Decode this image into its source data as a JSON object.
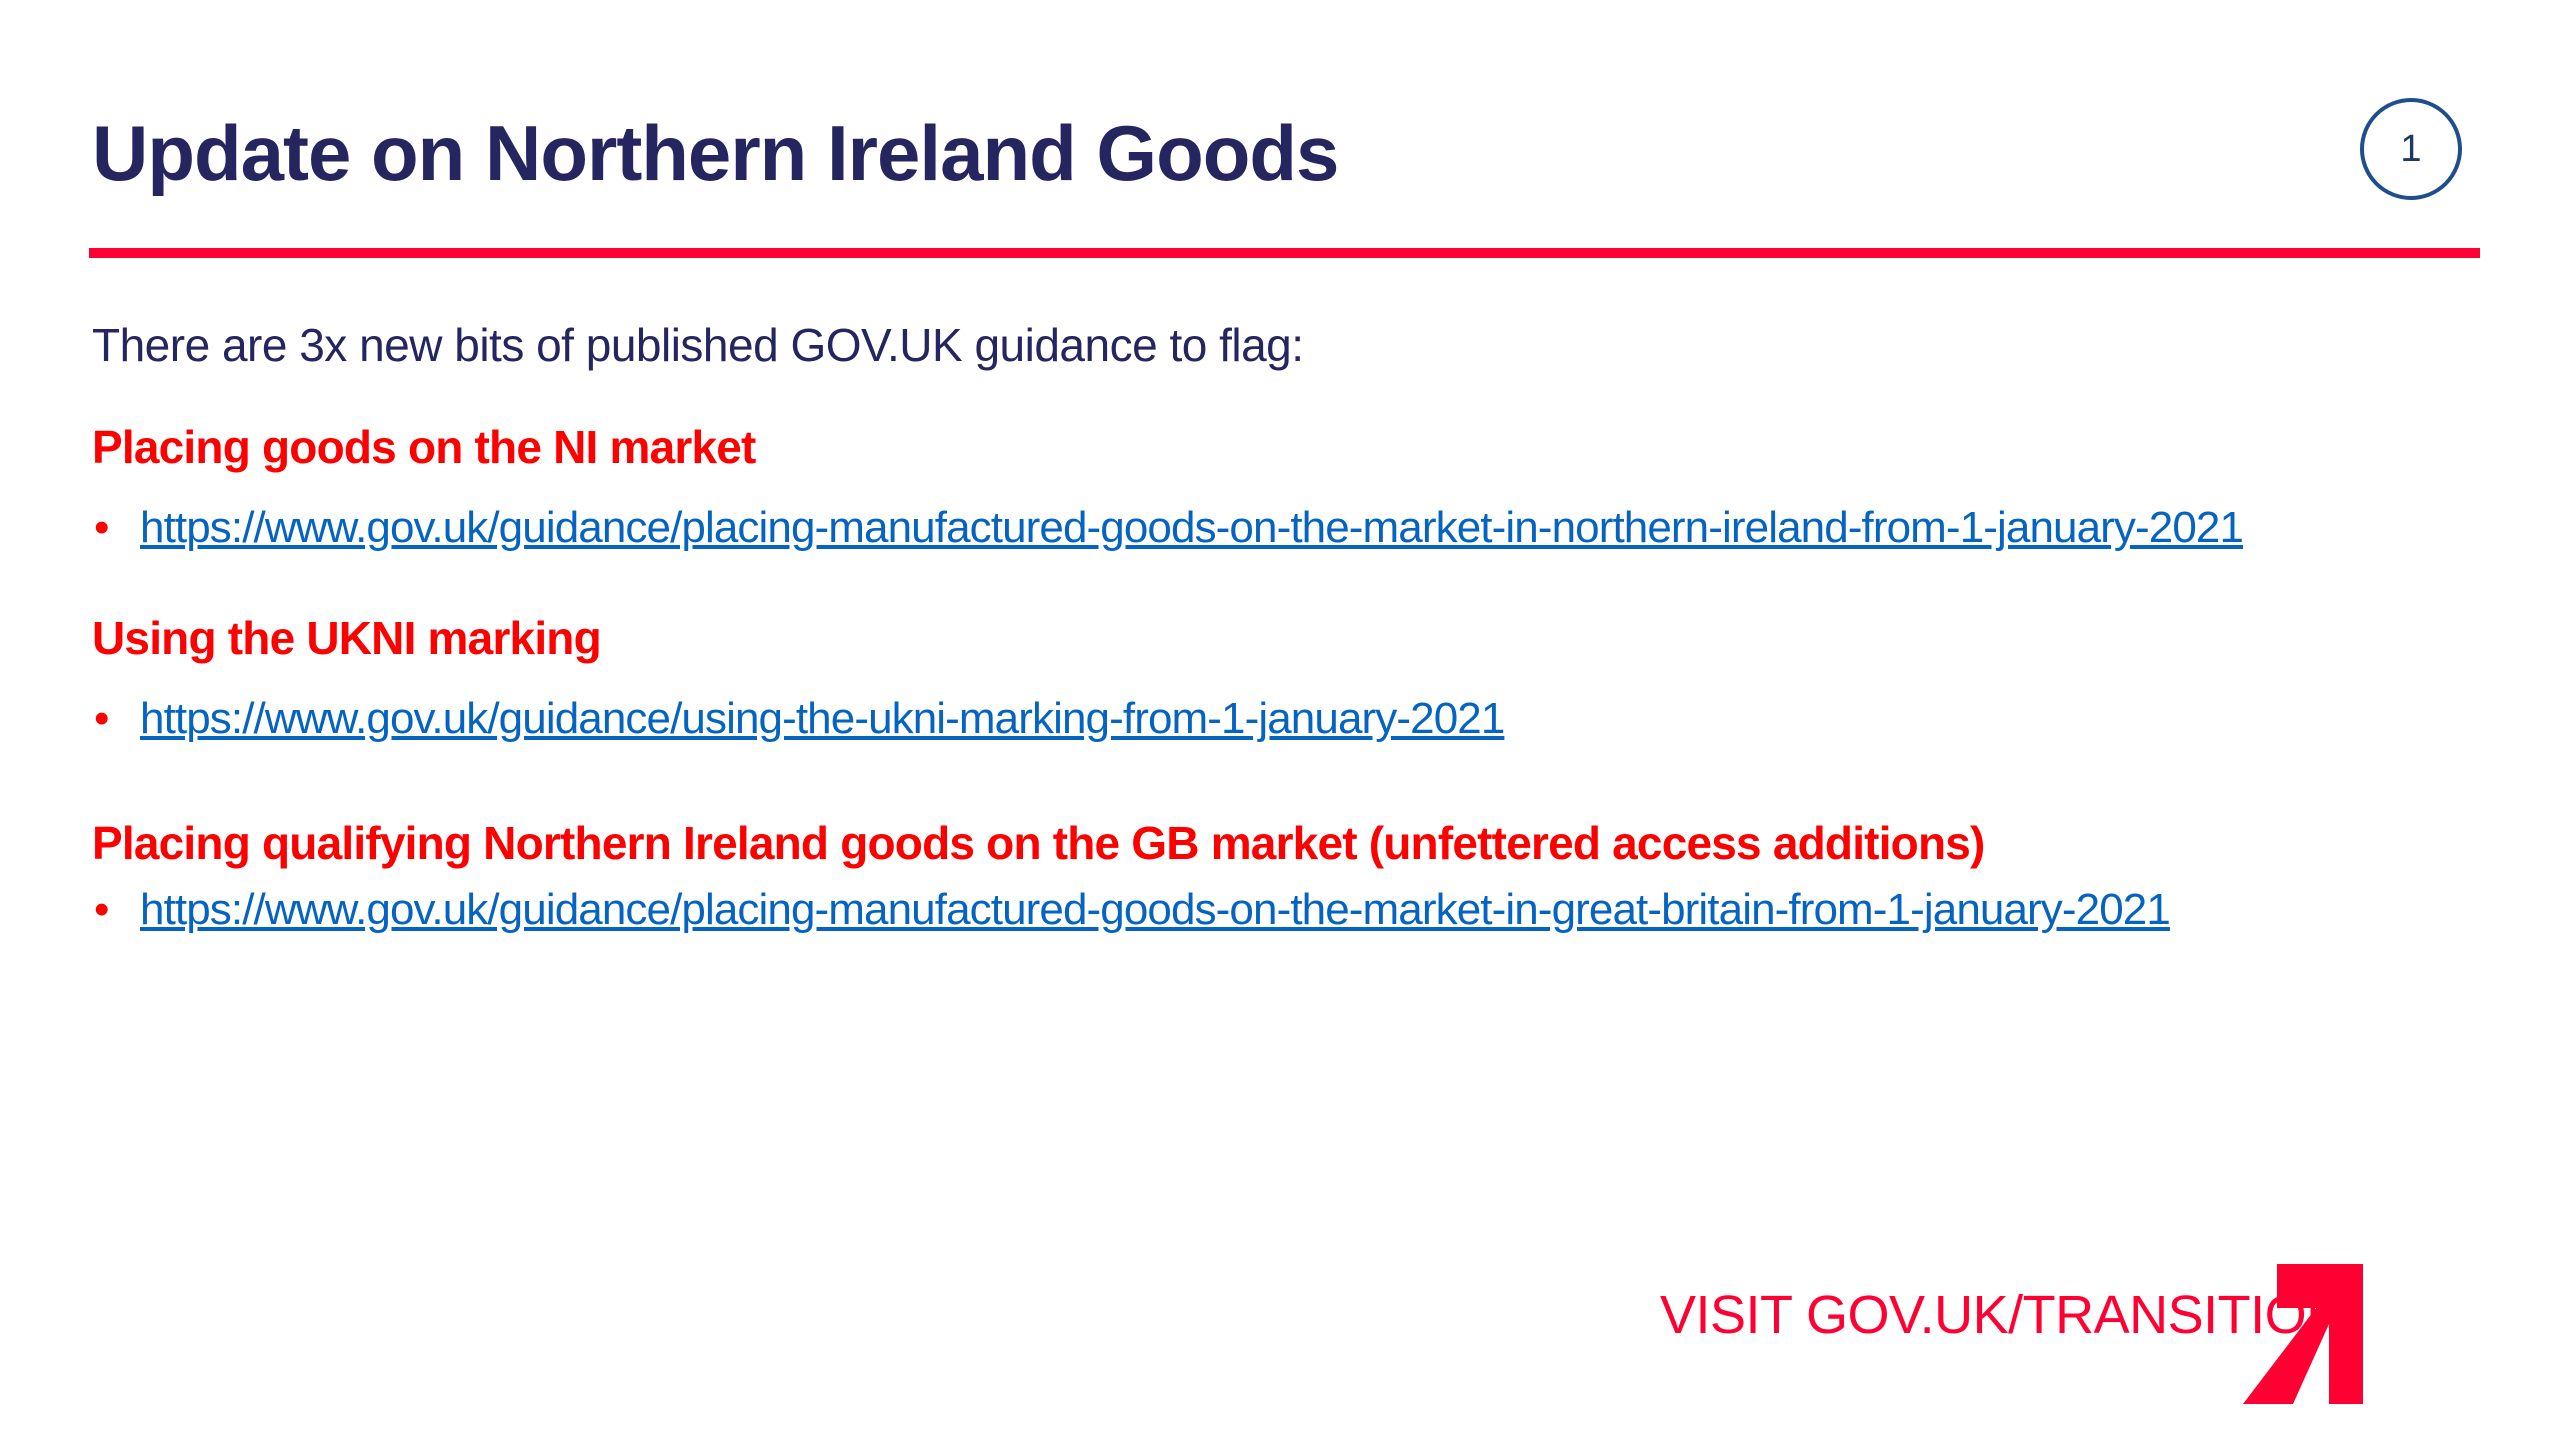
{
  "title": "Update on Northern Ireland Goods",
  "page_number": "1",
  "intro": "There are 3x new bits of published GOV.UK guidance to flag:",
  "sections": [
    {
      "heading": "Placing goods on the NI market",
      "link": "https://www.gov.uk/guidance/placing-manufactured-goods-on-the-market-in-northern-ireland-from-1-january-2021"
    },
    {
      "heading": "Using the UKNI marking",
      "link": "https://www.gov.uk/guidance/using-the-ukni-marking-from-1-january-2021"
    },
    {
      "heading": "Placing qualifying Northern Ireland goods on the GB market (unfettered access additions)",
      "link": "https://www.gov.uk/guidance/placing-manufactured-goods-on-the-market-in-great-britain-from-1-january-2021"
    }
  ],
  "footer": {
    "visit": "VISIT GOV.UK/TRANSITION",
    "logo_icon": "transition-arrow-icon"
  },
  "colors": {
    "title": "#25255f",
    "accent": "#ff0033",
    "heading": "#ff0000",
    "link": "#0563c1"
  }
}
